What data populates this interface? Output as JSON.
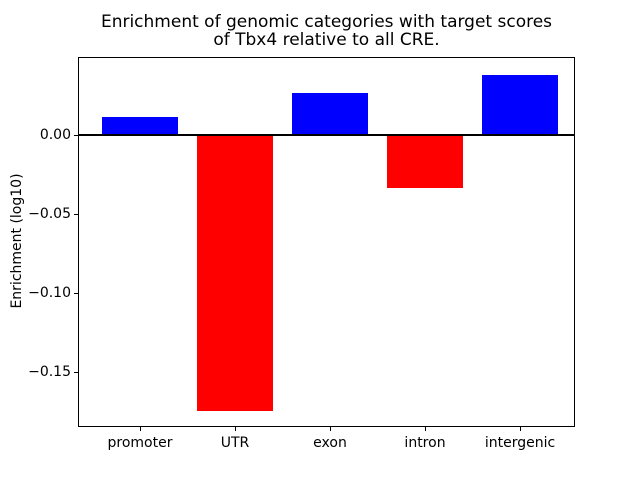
{
  "figure": {
    "background": "#ffffff",
    "text_color": "#000000"
  },
  "chart_data": {
    "type": "bar",
    "title": "Enrichment of genomic categories with target scores\nof Tbx4 relative to all CRE.",
    "categories": [
      "promoter",
      "UTR",
      "exon",
      "intron",
      "intergenic"
    ],
    "values": [
      0.012,
      -0.174,
      0.027,
      -0.033,
      0.038
    ],
    "bar_colors": [
      "#0000ff",
      "#ff0000",
      "#0000ff",
      "#ff0000",
      "#0000ff"
    ],
    "positive_color": "#0000ff",
    "negative_color": "#ff0000",
    "xlabel": "",
    "ylabel": "Enrichment (log10)",
    "ylim": [
      -0.185,
      0.049
    ],
    "yticks": [
      {
        "label": "0.00",
        "value": 0.0
      },
      {
        "label": "−0.05",
        "value": -0.05
      },
      {
        "label": "−0.10",
        "value": -0.1
      },
      {
        "label": "−0.15",
        "value": -0.15
      }
    ],
    "zero_line": true,
    "grid": false,
    "legend": null
  }
}
